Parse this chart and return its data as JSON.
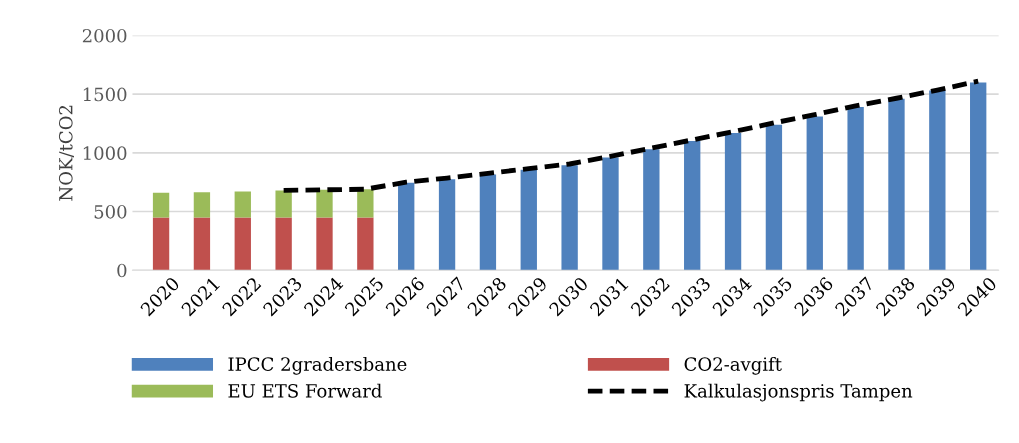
{
  "chart_data": {
    "type": "bar",
    "stacked": true,
    "ylabel": "NOK/tCO2",
    "categories": [
      "2020",
      "2021",
      "2022",
      "2023",
      "2024",
      "2025",
      "2026",
      "2027",
      "2028",
      "2029",
      "2030",
      "2031",
      "2032",
      "2033",
      "2034",
      "2035",
      "2036",
      "2037",
      "2038",
      "2039",
      "2040"
    ],
    "series": [
      {
        "name": "CO2-avgift",
        "color": "#c0504d",
        "values": [
          450,
          450,
          450,
          450,
          450,
          450,
          null,
          null,
          null,
          null,
          null,
          null,
          null,
          null,
          null,
          null,
          null,
          null,
          null,
          null,
          null
        ]
      },
      {
        "name": "EU ETS Forward",
        "color": "#9bbb59",
        "values": [
          210,
          215,
          220,
          230,
          235,
          240,
          null,
          null,
          null,
          null,
          null,
          null,
          null,
          null,
          null,
          null,
          null,
          null,
          null,
          null,
          null
        ]
      },
      {
        "name": "IPCC 2gradersbane",
        "color": "#4f81bd",
        "values": [
          null,
          null,
          null,
          null,
          null,
          null,
          745,
          775,
          815,
          855,
          895,
          960,
          1030,
          1100,
          1170,
          1240,
          1310,
          1390,
          1460,
          1530,
          1600
        ]
      },
      {
        "name": "Kalkulasjonspris Tampen",
        "type": "line",
        "color": "#000000",
        "line_style": "dashed",
        "values": [
          null,
          null,
          null,
          680,
          685,
          690,
          750,
          785,
          825,
          865,
          905,
          970,
          1040,
          1110,
          1180,
          1255,
          1325,
          1400,
          1465,
          1535,
          1610
        ]
      }
    ],
    "ylim": [
      0,
      2000
    ],
    "yticks": [
      0,
      500,
      1000,
      1500,
      2000
    ],
    "grid": "y",
    "legend": "bottom"
  }
}
